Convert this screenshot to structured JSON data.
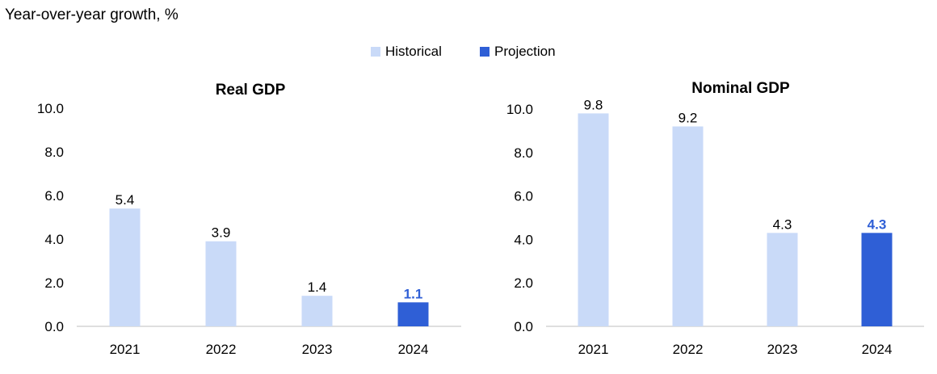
{
  "page_title": "Year-over-year growth, %",
  "legend": [
    {
      "label": "Historical",
      "color": "#c9daf8"
    },
    {
      "label": "Projection",
      "color": "#2f5fd6"
    }
  ],
  "chart_data": [
    {
      "type": "bar",
      "title": "Real GDP",
      "categories": [
        "2021",
        "2022",
        "2023",
        "2024"
      ],
      "values": [
        5.4,
        3.9,
        1.4,
        1.1
      ],
      "value_labels": [
        "5.4",
        "3.9",
        "1.4",
        "1.1"
      ],
      "kinds": [
        "Historical",
        "Historical",
        "Historical",
        "Projection"
      ],
      "yticks": [
        "0.0",
        "2.0",
        "4.0",
        "6.0",
        "8.0",
        "10.0"
      ],
      "ylim": [
        0,
        10
      ],
      "grid": false,
      "legend_position": "top"
    },
    {
      "type": "bar",
      "title": "Nominal GDP",
      "categories": [
        "2021",
        "2022",
        "2023",
        "2024"
      ],
      "values": [
        9.8,
        9.2,
        4.3,
        4.3
      ],
      "value_labels": [
        "9.8",
        "9.2",
        "4.3",
        "4.3"
      ],
      "kinds": [
        "Historical",
        "Historical",
        "Historical",
        "Projection"
      ],
      "yticks": [
        "0.0",
        "2.0",
        "4.0",
        "6.0",
        "8.0",
        "10.0"
      ],
      "ylim": [
        0,
        10
      ],
      "grid": false,
      "legend_position": "top"
    }
  ]
}
